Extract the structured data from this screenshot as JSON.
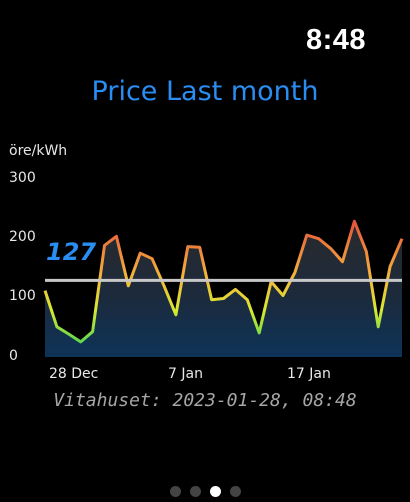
{
  "status": {
    "time": "8:48"
  },
  "title": "Price Last month",
  "chart_data": {
    "type": "area",
    "ylabel": "öre/kWh",
    "ylim": [
      0,
      300
    ],
    "y_ticks": [
      "300",
      "200",
      "100",
      "0"
    ],
    "x_ticks": [
      {
        "label": "28 Dec",
        "index": 1
      },
      {
        "label": "7 Jan",
        "index": 11
      },
      {
        "label": "17 Jan",
        "index": 21
      }
    ],
    "average": 127,
    "average_label": "127",
    "series": [
      {
        "values": [
          110,
          50,
          38,
          25,
          42,
          185,
          200,
          118,
          172,
          163,
          118,
          70,
          183,
          182,
          95,
          97,
          112,
          95,
          40,
          125,
          102,
          140,
          202,
          196,
          180,
          158,
          225,
          175,
          50,
          150,
          196
        ]
      }
    ]
  },
  "footer": "Vitahuset: 2023-01-28, 08:48",
  "page_dots": {
    "count": 4,
    "active": 2
  }
}
